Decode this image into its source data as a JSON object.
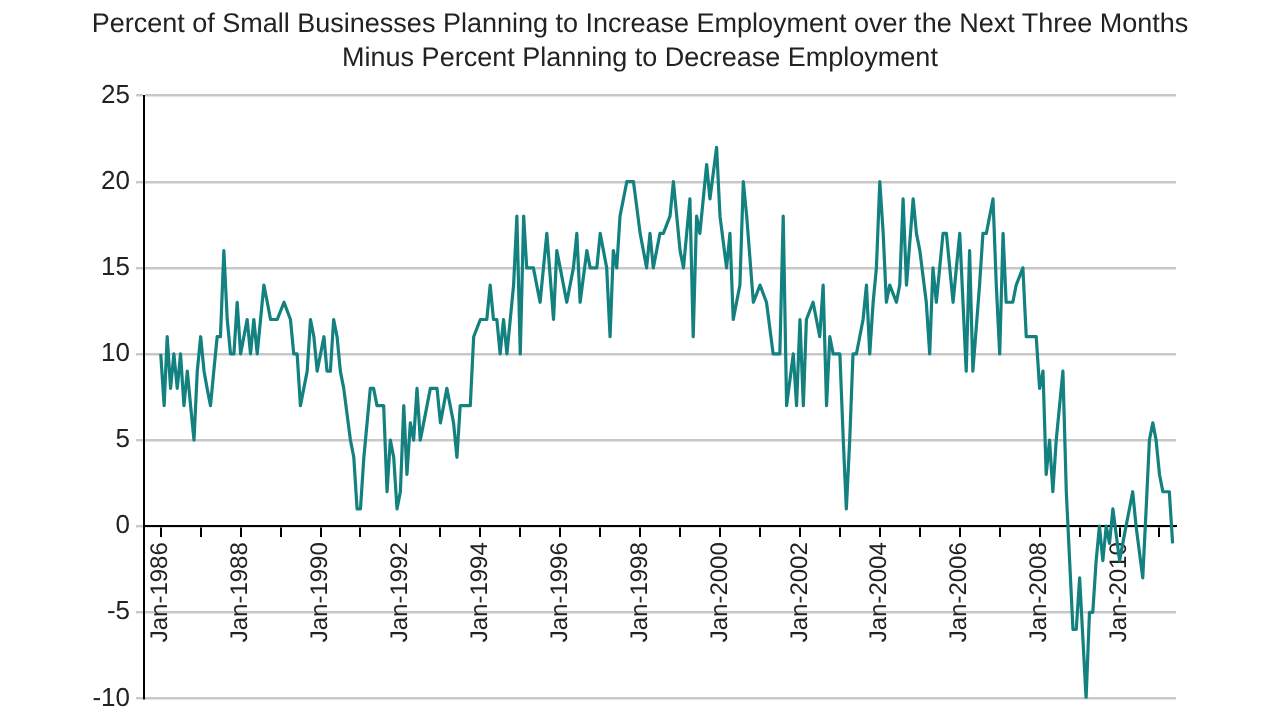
{
  "chart_data": {
    "type": "line",
    "title": "Percent of Small Businesses Planning to Increase Employment over the Next Three Months Minus Percent Planning to Decrease Employment",
    "x": [
      "1986-01",
      "1986-02",
      "1986-03",
      "1986-04",
      "1986-05",
      "1986-06",
      "1986-07",
      "1986-08",
      "1986-09",
      "1986-10",
      "1986-11",
      "1986-12",
      "1987-01",
      "1987-02",
      "1987-03",
      "1987-04",
      "1987-05",
      "1987-06",
      "1987-07",
      "1987-08",
      "1987-09",
      "1987-10",
      "1987-11",
      "1987-12",
      "1988-01",
      "1988-03",
      "1988-04",
      "1988-05",
      "1988-06",
      "1988-08",
      "1988-09",
      "1988-10",
      "1988-12",
      "1989-02",
      "1989-04",
      "1989-05",
      "1989-06",
      "1989-07",
      "1989-08",
      "1989-09",
      "1989-10",
      "1989-11",
      "1989-12",
      "1990-01",
      "1990-02",
      "1990-03",
      "1990-04",
      "1990-05",
      "1990-06",
      "1990-07",
      "1990-08",
      "1990-10",
      "1990-11",
      "1990-12",
      "1991-01",
      "1991-02",
      "1991-04",
      "1991-05",
      "1991-06",
      "1991-08",
      "1991-09",
      "1991-10",
      "1991-11",
      "1991-12",
      "1992-01",
      "1992-02",
      "1992-03",
      "1992-04",
      "1992-05",
      "1992-06",
      "1992-07",
      "1992-08",
      "1992-10",
      "1992-12",
      "1993-01",
      "1993-03",
      "1993-05",
      "1993-06",
      "1993-07",
      "1993-10",
      "1993-11",
      "1994-01",
      "1994-03",
      "1994-04",
      "1994-05",
      "1994-06",
      "1994-07",
      "1994-08",
      "1994-09",
      "1994-11",
      "1994-12",
      "1995-01",
      "1995-02",
      "1995-03",
      "1995-05",
      "1995-07",
      "1995-08",
      "1995-09",
      "1995-11",
      "1995-12",
      "1996-01",
      "1996-03",
      "1996-05",
      "1996-06",
      "1996-07",
      "1996-09",
      "1996-10",
      "1996-12",
      "1997-01",
      "1997-03",
      "1997-04",
      "1997-05",
      "1997-06",
      "1997-07",
      "1997-09",
      "1997-11",
      "1998-01",
      "1998-03",
      "1998-04",
      "1998-05",
      "1998-07",
      "1998-08",
      "1998-10",
      "1998-11",
      "1999-01",
      "1999-02",
      "1999-04",
      "1999-05",
      "1999-06",
      "1999-07",
      "1999-09",
      "1999-10",
      "1999-12",
      "2000-01",
      "2000-03",
      "2000-04",
      "2000-05",
      "2000-07",
      "2000-08",
      "2000-09",
      "2000-11",
      "2001-01",
      "2001-03",
      "2001-05",
      "2001-07",
      "2001-08",
      "2001-09",
      "2001-11",
      "2001-12",
      "2002-01",
      "2002-02",
      "2002-03",
      "2002-05",
      "2002-07",
      "2002-08",
      "2002-09",
      "2002-10",
      "2002-11",
      "2003-01",
      "2003-02",
      "2003-03",
      "2003-04",
      "2003-05",
      "2003-06",
      "2003-08",
      "2003-09",
      "2003-10",
      "2003-11",
      "2003-12",
      "2004-01",
      "2004-02",
      "2004-03",
      "2004-04",
      "2004-06",
      "2004-07",
      "2004-08",
      "2004-09",
      "2004-11",
      "2004-12",
      "2005-01",
      "2005-03",
      "2005-04",
      "2005-05",
      "2005-06",
      "2005-08",
      "2005-09",
      "2005-11",
      "2005-12",
      "2006-01",
      "2006-03",
      "2006-04",
      "2006-05",
      "2006-07",
      "2006-08",
      "2006-09",
      "2006-11",
      "2006-12",
      "2007-01",
      "2007-02",
      "2007-03",
      "2007-04",
      "2007-05",
      "2007-06",
      "2007-08",
      "2007-09",
      "2007-10",
      "2007-12",
      "2008-01",
      "2008-02",
      "2008-03",
      "2008-04",
      "2008-05",
      "2008-06",
      "2008-08",
      "2008-09",
      "2008-11",
      "2008-12",
      "2009-01",
      "2009-03",
      "2009-04",
      "2009-05",
      "2009-06",
      "2009-07",
      "2009-08",
      "2009-09",
      "2009-10",
      "2009-11",
      "2010-01",
      "2010-03",
      "2010-04",
      "2010-05",
      "2010-06",
      "2010-08",
      "2010-09",
      "2010-10",
      "2010-11",
      "2010-12",
      "2011-01",
      "2011-02",
      "2011-04",
      "2011-05"
    ],
    "series": [
      {
        "color": "#13817f",
        "values": [
          10,
          7,
          11,
          8,
          10,
          8,
          10,
          7,
          9,
          7,
          5,
          9,
          11,
          9,
          8,
          7,
          9,
          11,
          11,
          16,
          12,
          10,
          10,
          13,
          10,
          12,
          10,
          12,
          10,
          14,
          13,
          12,
          12,
          13,
          12,
          10,
          10,
          7,
          8,
          9,
          12,
          11,
          9,
          10,
          11,
          9,
          9,
          12,
          11,
          9,
          8,
          5,
          4,
          1,
          1,
          4,
          8,
          8,
          7,
          7,
          2,
          5,
          4,
          1,
          2,
          7,
          3,
          6,
          5,
          8,
          5,
          6,
          8,
          8,
          6,
          8,
          6,
          4,
          7,
          7,
          11,
          12,
          12,
          14,
          12,
          12,
          10,
          12,
          10,
          14,
          18,
          10,
          18,
          15,
          15,
          13,
          15,
          17,
          12,
          16,
          15,
          13,
          15,
          17,
          13,
          16,
          15,
          15,
          17,
          15,
          11,
          16,
          15,
          18,
          20,
          20,
          17,
          15,
          17,
          15,
          17,
          17,
          18,
          20,
          16,
          15,
          19,
          11,
          18,
          17,
          21,
          19,
          22,
          18,
          15,
          17,
          12,
          14,
          20,
          18,
          13,
          14,
          13,
          10,
          10,
          18,
          7,
          10,
          7,
          12,
          7,
          12,
          13,
          11,
          14,
          7,
          11,
          10,
          10,
          5,
          1,
          5,
          10,
          10,
          12,
          14,
          10,
          13,
          15,
          20,
          17,
          13,
          14,
          13,
          14,
          19,
          14,
          19,
          17,
          16,
          13,
          10,
          15,
          13,
          17,
          17,
          13,
          15,
          17,
          9,
          16,
          9,
          14,
          17,
          17,
          19,
          14,
          10,
          17,
          13,
          13,
          13,
          14,
          15,
          11,
          11,
          11,
          8,
          9,
          3,
          5,
          2,
          5,
          9,
          2,
          -6,
          -6,
          -3,
          -10,
          -5,
          -5,
          -2,
          0,
          -2,
          0,
          -1,
          1,
          -2,
          0,
          1,
          2,
          0,
          -3,
          1,
          5,
          6,
          5,
          3,
          2,
          2,
          -1
        ]
      }
    ],
    "xlim": [
      "1985-08",
      "2011-06"
    ],
    "xticks": [
      {
        "value": "1986-01",
        "label": "Jan-1986"
      },
      {
        "value": "1987-01",
        "label": null
      },
      {
        "value": "1988-01",
        "label": "Jan-1988"
      },
      {
        "value": "1989-01",
        "label": null
      },
      {
        "value": "1990-01",
        "label": "Jan-1990"
      },
      {
        "value": "1991-01",
        "label": null
      },
      {
        "value": "1992-01",
        "label": "Jan-1992"
      },
      {
        "value": "1993-01",
        "label": null
      },
      {
        "value": "1994-01",
        "label": "Jan-1994"
      },
      {
        "value": "1995-01",
        "label": null
      },
      {
        "value": "1996-01",
        "label": "Jan-1996"
      },
      {
        "value": "1997-01",
        "label": null
      },
      {
        "value": "1998-01",
        "label": "Jan-1998"
      },
      {
        "value": "1999-01",
        "label": null
      },
      {
        "value": "2000-01",
        "label": "Jan-2000"
      },
      {
        "value": "2001-01",
        "label": null
      },
      {
        "value": "2002-01",
        "label": "Jan-2002"
      },
      {
        "value": "2003-01",
        "label": null
      },
      {
        "value": "2004-01",
        "label": "Jan-2004"
      },
      {
        "value": "2005-01",
        "label": null
      },
      {
        "value": "2006-01",
        "label": "Jan-2006"
      },
      {
        "value": "2007-01",
        "label": null
      },
      {
        "value": "2008-01",
        "label": "Jan-2008"
      },
      {
        "value": "2009-01",
        "label": null
      },
      {
        "value": "2010-01",
        "label": "Jan-2010"
      },
      {
        "value": "2011-01",
        "label": null
      }
    ],
    "ylim": [
      -10,
      25
    ],
    "yticks": [
      -10,
      -5,
      0,
      5,
      10,
      15,
      20,
      25
    ],
    "grid": "y",
    "legend": false,
    "marker": "none",
    "line_style": "solid"
  }
}
